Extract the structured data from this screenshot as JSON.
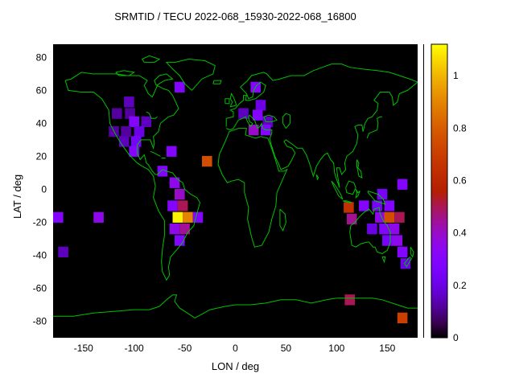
{
  "chart_data": {
    "type": "heatmap",
    "title": "SRMTID / TECU 2022-068_15930-2022-068_16800",
    "xlabel": "LON / deg",
    "ylabel": "LAT / deg",
    "xlim": [
      -180,
      180
    ],
    "ylim": [
      -90,
      88
    ],
    "xticks": [
      -150,
      -100,
      -50,
      0,
      50,
      100,
      150
    ],
    "xtick_labels": [
      "-150",
      "-100",
      "-50",
      "0",
      "50",
      "100",
      "150"
    ],
    "yticks": [
      80,
      60,
      40,
      20,
      0,
      -20,
      -40,
      -60,
      -80
    ],
    "ytick_labels": [
      "80",
      "60",
      "40",
      "20",
      "0",
      "-20",
      "-40",
      "-60",
      "-80"
    ],
    "grid": false,
    "legend": false,
    "colorbar": {
      "position": "right",
      "min": 0,
      "max": 1.12,
      "ticks": [
        0,
        0.2,
        0.4,
        0.6,
        0.8,
        1
      ],
      "tick_labels": [
        "0",
        "0.2",
        "0.4",
        "0.6",
        "0.8",
        "1"
      ],
      "palette": "gnuplot-default black-purple-magenta-orange-yellow"
    },
    "cell_size_deg": {
      "lon": 10,
      "lat": 6.5
    },
    "cells": [
      [
        -55,
        62,
        0.3
      ],
      [
        20,
        62,
        0.3
      ],
      [
        -105,
        53,
        0.15
      ],
      [
        25,
        51,
        0.2
      ],
      [
        -117,
        46,
        0.12
      ],
      [
        -104,
        46,
        0.12
      ],
      [
        8,
        46,
        0.15
      ],
      [
        22,
        45,
        0.3
      ],
      [
        -100,
        41,
        0.3
      ],
      [
        -88,
        41,
        0.15
      ],
      [
        32,
        41,
        0.15
      ],
      [
        -120,
        35,
        0.12
      ],
      [
        -108,
        35,
        0.12
      ],
      [
        -95,
        35,
        0.2
      ],
      [
        18,
        36,
        0.4
      ],
      [
        30,
        36,
        0.3
      ],
      [
        -110,
        29,
        0.15
      ],
      [
        -98,
        29,
        0.25
      ],
      [
        -100,
        23,
        0.3
      ],
      [
        -63,
        23,
        0.3
      ],
      [
        -28,
        17,
        0.75
      ],
      [
        -72,
        11,
        0.3
      ],
      [
        -60,
        4,
        0.35
      ],
      [
        165,
        3,
        0.3
      ],
      [
        -55,
        -3,
        0.4
      ],
      [
        145,
        -3,
        0.25
      ],
      [
        -62,
        -10,
        0.3
      ],
      [
        -52,
        -10,
        0.5
      ],
      [
        112,
        -11,
        0.65
      ],
      [
        127,
        -10,
        0.3
      ],
      [
        140,
        -10,
        0.25
      ],
      [
        152,
        -10,
        0.3
      ],
      [
        -175,
        -17,
        0.3
      ],
      [
        -135,
        -17,
        0.35
      ],
      [
        -57,
        -17,
        1.1
      ],
      [
        -47,
        -17,
        0.9
      ],
      [
        -37,
        -17,
        0.3
      ],
      [
        115,
        -18,
        0.45
      ],
      [
        143,
        -17,
        0.35
      ],
      [
        152,
        -17,
        0.75
      ],
      [
        162,
        -17,
        0.5
      ],
      [
        -60,
        -24,
        0.35
      ],
      [
        -50,
        -24,
        0.45
      ],
      [
        135,
        -24,
        0.2
      ],
      [
        147,
        -24,
        0.3
      ],
      [
        157,
        -24,
        0.35
      ],
      [
        -55,
        -31,
        0.3
      ],
      [
        150,
        -31,
        0.25
      ],
      [
        160,
        -31,
        0.35
      ],
      [
        -170,
        -38,
        0.15
      ],
      [
        165,
        -38,
        0.3
      ],
      [
        168,
        -45,
        0.2
      ],
      [
        113,
        -67,
        0.5
      ],
      [
        165,
        -78,
        0.7
      ]
    ],
    "colors": {
      "plot_background": "#000000",
      "coastline": "#00c000",
      "page_background": "#ffffff",
      "text": "#000000"
    },
    "basemap_polylines": [
      [
        -168,
        66,
        -165,
        60,
        -152,
        59,
        -140,
        59,
        -132,
        55,
        -125,
        48,
        -124,
        40,
        -118,
        33,
        -112,
        27,
        -105,
        21,
        -97,
        16,
        -92,
        14,
        -86,
        12,
        -81,
        8,
        -79,
        2,
        -81,
        -5,
        -76,
        -13,
        -70,
        -19,
        -70,
        -28,
        -72,
        -36,
        -73,
        -44,
        -72,
        -50,
        -68,
        -55,
        -65,
        -52,
        -66,
        -47,
        -64,
        -41,
        -57,
        -36,
        -52,
        -32,
        -47,
        -26,
        -41,
        -22,
        -39,
        -17,
        -35,
        -8,
        -38,
        -5,
        -44,
        -3,
        -50,
        0,
        -52,
        4,
        -57,
        6,
        -62,
        10,
        -68,
        11,
        -72,
        12,
        -77,
        9,
        -79,
        9,
        -82,
        11,
        -86,
        15,
        -88,
        16,
        -90,
        21,
        -94,
        18,
        -97,
        22,
        -97,
        27,
        -93,
        30,
        -89,
        30,
        -84,
        30,
        -81,
        25,
        -80,
        28,
        -81,
        32,
        -76,
        35,
        -74,
        40,
        -70,
        42,
        -66,
        44,
        -61,
        45,
        -56,
        49,
        -59,
        53,
        -62,
        57,
        -66,
        60,
        -71,
        61,
        -77,
        63,
        -82,
        56,
        -86,
        58,
        -90,
        63,
        -87,
        66,
        -95,
        69,
        -107,
        69,
        -118,
        70,
        -130,
        70,
        -141,
        70,
        -152,
        71,
        -162,
        67,
        -168,
        66
      ],
      [
        -43,
        60,
        -33,
        67,
        -22,
        70,
        -20,
        75,
        -30,
        78,
        -46,
        79,
        -60,
        77,
        -68,
        77,
        -62,
        73,
        -55,
        69,
        -50,
        64,
        -43,
        60
      ],
      [
        -78,
        63,
        -70,
        66,
        -62,
        67,
        -68,
        70,
        -75,
        69,
        -80,
        66,
        -78,
        63
      ],
      [
        -115,
        69,
        -105,
        69,
        -100,
        71,
        -110,
        72,
        -118,
        71,
        -115,
        69
      ],
      [
        -90,
        77,
        -80,
        77,
        -75,
        79,
        -85,
        81,
        -92,
        79,
        -90,
        77
      ],
      [
        -6,
        35,
        3,
        37,
        11,
        37,
        10,
        33,
        20,
        31,
        25,
        32,
        32,
        31,
        34,
        28,
        38,
        21,
        43,
        11,
        48,
        11,
        51,
        12,
        46,
        5,
        41,
        -2,
        40,
        -10,
        36,
        -18,
        33,
        -26,
        26,
        -34,
        19,
        -35,
        16,
        -29,
        12,
        -18,
        13,
        -11,
        9,
        -2,
        9,
        4,
        3,
        6,
        -4,
        5,
        -8,
        4,
        -13,
        9,
        -17,
        15,
        -16,
        21,
        -10,
        29,
        -6,
        35
      ],
      [
        -9,
        38,
        -9,
        43,
        -2,
        44,
        -2,
        47,
        -5,
        48,
        0,
        49,
        4,
        52,
        8,
        54,
        8,
        57,
        11,
        57,
        10,
        54,
        14,
        54,
        20,
        55,
        28,
        59,
        30,
        63,
        25,
        65,
        21,
        63,
        18,
        60,
        17,
        56,
        13,
        55,
        11,
        58,
        5,
        62,
        12,
        66,
        16,
        69,
        22,
        70,
        28,
        71,
        31,
        70,
        37,
        66,
        44,
        67,
        55,
        69,
        68,
        69,
        77,
        72,
        86,
        74,
        95,
        76,
        105,
        76,
        113,
        74,
        125,
        73,
        140,
        72,
        152,
        71,
        162,
        69,
        172,
        67,
        180,
        65,
        178,
        64,
        170,
        60,
        162,
        58,
        160,
        53,
        156,
        51,
        155,
        56,
        152,
        59,
        143,
        59,
        137,
        54,
        141,
        52,
        140,
        48,
        135,
        44,
        131,
        43,
        128,
        40,
        126,
        35,
        125,
        39,
        121,
        39,
        118,
        38,
        121,
        33,
        120,
        28,
        116,
        23,
        110,
        20,
        108,
        16,
        109,
        12,
        105,
        9,
        103,
        13,
        100,
        13,
        101,
        8,
        103,
        1,
        100,
        6,
        98,
        10,
        97,
        16,
        94,
        18,
        91,
        22,
        88,
        21,
        84,
        18,
        80,
        14,
        77,
        8,
        73,
        16,
        70,
        21,
        66,
        25,
        61,
        25,
        57,
        27,
        50,
        30,
        48,
        29,
        51,
        26,
        56,
        25,
        59,
        22,
        55,
        17,
        52,
        14,
        45,
        12,
        43,
        15,
        39,
        20,
        35,
        28,
        34,
        31,
        36,
        34,
        36,
        36,
        30,
        36,
        27,
        37,
        26,
        40,
        24,
        38,
        22,
        37,
        20,
        40,
        19,
        42,
        14,
        45,
        13,
        44,
        14,
        41,
        17,
        40,
        15,
        38,
        12,
        41,
        10,
        44,
        7,
        43,
        3,
        42,
        0,
        39,
        -2,
        37,
        -5,
        36,
        -9,
        37
      ],
      [
        28,
        44,
        33,
        45,
        38,
        44,
        41,
        42,
        36,
        41,
        30,
        41,
        28,
        44
      ],
      [
        50,
        37,
        54,
        40,
        54,
        45,
        50,
        46,
        47,
        44,
        47,
        40,
        50,
        37
      ],
      [
        -5,
        50,
        1,
        51,
        0,
        53,
        -2,
        56,
        -4,
        58,
        -5,
        55,
        -3,
        53,
        -5,
        50
      ],
      [
        -10,
        52,
        -6,
        52,
        -6,
        55,
        -10,
        55,
        -10,
        52
      ],
      [
        -22,
        64,
        -15,
        64,
        -14,
        66,
        -21,
        66,
        -22,
        64
      ],
      [
        130,
        31,
        132,
        34,
        136,
        35,
        140,
        36,
        141,
        40,
        140,
        43,
        143,
        44,
        145,
        44
      ],
      [
        95,
        5,
        99,
        2,
        104,
        -3,
        106,
        -6,
        102,
        -4,
        97,
        2,
        95,
        5
      ],
      [
        106,
        -7,
        112,
        -8,
        115,
        -8,
        110,
        -7,
        106,
        -7
      ],
      [
        109,
        1,
        112,
        5,
        117,
        4,
        119,
        1,
        116,
        -3,
        110,
        -2,
        109,
        1
      ],
      [
        119,
        0,
        121,
        -2,
        123,
        -1,
        121,
        -4,
        119,
        -5,
        120,
        -2,
        119,
        0
      ],
      [
        131,
        -1,
        136,
        -2,
        141,
        -3,
        146,
        -6,
        148,
        -9,
        143,
        -8,
        138,
        -7,
        134,
        -4,
        131,
        -2,
        131,
        -1
      ],
      [
        120,
        18,
        122,
        16,
        121,
        13,
        124,
        11,
        125,
        7,
        122,
        8,
        120,
        14,
        120,
        18
      ],
      [
        44,
        -12,
        49,
        -15,
        50,
        -20,
        47,
        -25,
        44,
        -22,
        44,
        -16,
        44,
        -12
      ],
      [
        80,
        9,
        82,
        7,
        81,
        6,
        80,
        9
      ],
      [
        -84,
        23,
        -80,
        22,
        -74,
        20
      ],
      [
        -73,
        19,
        -69,
        19
      ],
      [
        -88,
        47,
        -85,
        46,
        -83,
        43,
        -79,
        43,
        -77,
        44
      ],
      [
        114,
        -22,
        113,
        -26,
        115,
        -34,
        119,
        -35,
        124,
        -33,
        130,
        -32,
        132,
        -32,
        136,
        -35,
        138,
        -35,
        140,
        -38,
        145,
        -39,
        150,
        -37,
        153,
        -32,
        153,
        -26,
        150,
        -22,
        146,
        -19,
        143,
        -15,
        142,
        -11,
        137,
        -12,
        136,
        -15,
        132,
        -12,
        127,
        -14,
        122,
        -17,
        118,
        -20,
        114,
        -22
      ],
      [
        145,
        -41,
        148,
        -41,
        147,
        -44,
        145,
        -41
      ],
      [
        173,
        -35,
        176,
        -38,
        175,
        -41,
        173,
        -39,
        173,
        -35
      ],
      [
        172,
        -41,
        174,
        -42,
        169,
        -47,
        167,
        -45,
        172,
        -41
      ],
      [
        -180,
        -77,
        -160,
        -77,
        -140,
        -75,
        -120,
        -74,
        -100,
        -73,
        -85,
        -73,
        -75,
        -71,
        -68,
        -67,
        -62,
        -64,
        -58,
        -64,
        -60,
        -68,
        -55,
        -72,
        -40,
        -78,
        -25,
        -73,
        -10,
        -71,
        0,
        -70,
        15,
        -70,
        30,
        -69,
        45,
        -67,
        60,
        -67,
        75,
        -69,
        90,
        -67,
        100,
        -66,
        110,
        -66,
        120,
        -66,
        135,
        -66,
        145,
        -67,
        160,
        -70,
        170,
        -72,
        180,
        -72
      ]
    ]
  }
}
